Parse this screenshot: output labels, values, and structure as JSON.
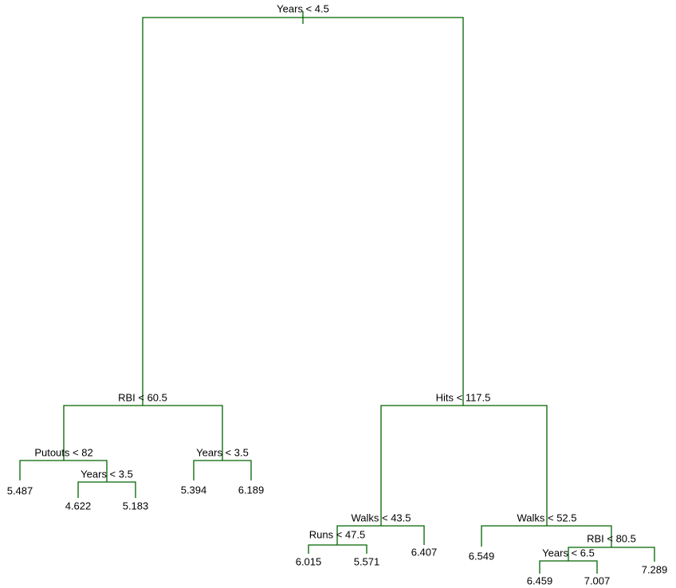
{
  "nodes": [
    {
      "label": "Years < 4.5"
    },
    {
      "label": "RBI < 60.5"
    },
    {
      "label": "Putouts < 82"
    },
    {
      "label": "5.487"
    },
    {
      "label": "Years < 3.5"
    },
    {
      "label": "4.622"
    },
    {
      "label": "5.183"
    },
    {
      "label": "Years < 3.5"
    },
    {
      "label": "5.394"
    },
    {
      "label": "6.189"
    },
    {
      "label": "Hits < 117.5"
    },
    {
      "label": "Walks < 43.5"
    },
    {
      "label": "Runs < 47.5"
    },
    {
      "label": "6.015"
    },
    {
      "label": "5.571"
    },
    {
      "label": "6.407"
    },
    {
      "label": "Walks < 52.5"
    },
    {
      "label": "6.549"
    },
    {
      "label": "RBI < 80.5"
    },
    {
      "label": "Years < 6.5"
    },
    {
      "label": "6.459"
    },
    {
      "label": "7.007"
    },
    {
      "label": "7.289"
    }
  ]
}
